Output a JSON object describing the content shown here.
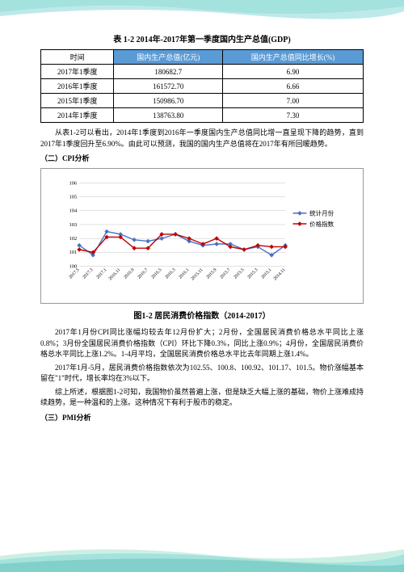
{
  "table_title": "表 1-2 2014年-2017年第一季度国内生产总值(GDP)",
  "table": {
    "headers": [
      "时间",
      "国内生产总值(亿元)",
      "国内生产总值同比增长(%)"
    ],
    "header_bg": "#5b9bd5",
    "header_fg": "#ffffff",
    "rows": [
      [
        "2017年1季度",
        "180682.7",
        "6.90"
      ],
      [
        "2016年1季度",
        "161572.70",
        "6.66"
      ],
      [
        "2015年1季度",
        "150986.70",
        "7.00"
      ],
      [
        "2014年1季度",
        "138763.80",
        "7.30"
      ]
    ]
  },
  "para1": "从表1-2可以看出，2014年1季度到2016年一季度国内生产总值同比增一直呈现下降的趋势，直到2017年1季度回升至6.90%。由此可以预测，我国的国内生产总值将在2017年有所回暖趋势。",
  "section2": "（二）CPI分析",
  "chart": {
    "type": "line",
    "x_labels": [
      "2017.5",
      "2017.3",
      "2017.1",
      "2016.11",
      "2016.9",
      "2016.7",
      "2016.5",
      "2016.3",
      "2016.1",
      "2015.11",
      "2015.9",
      "2015.7",
      "2015.5",
      "2015.3",
      "2015.1",
      "2014.11"
    ],
    "ylim": [
      100,
      106
    ],
    "ytick_step": 1,
    "yticks": [
      100,
      101,
      102,
      103,
      104,
      105,
      106
    ],
    "series": [
      {
        "name": "统计月份",
        "color": "#4472c4",
        "values": [
          101.5,
          100.8,
          102.5,
          102.3,
          101.9,
          101.8,
          102.0,
          102.3,
          101.8,
          101.5,
          101.6,
          101.6,
          101.2,
          101.4,
          100.8,
          101.5
        ]
      },
      {
        "name": "价格指数",
        "color": "#c00000",
        "values": [
          101.2,
          101.0,
          102.1,
          102.1,
          101.3,
          101.3,
          102.3,
          102.3,
          102.0,
          101.6,
          102.0,
          101.4,
          101.2,
          101.5,
          101.4,
          101.4
        ]
      }
    ],
    "background": "#ffffff",
    "grid_color": "#bfbfbf",
    "label_fontsize": 7,
    "line_width": 1.5,
    "marker": "diamond",
    "marker_size": 3
  },
  "chart_caption": "图1-2 居民消费价格指数（2014-2017）",
  "para2": "2017年1月份CPI同比涨幅均较去年12月份扩大；2月份，全国居民消费价格总水平同比上涨0.8%；3月份全国居民消费价格指数（CPI）环比下降0.3%，同比上涨0.9%；4月份，全国居民消费价格总水平同比上涨1.2%。1-4月平均，全国居民消费价格总水平比去年同期上涨1.4%。",
  "para3": "2017年1月-5月，居民消费价格指数依次为102.55、100.8、100.92、101.17、101.5。物价涨幅基本留在\"1\"时代，增长率均在3%以下。",
  "para4": "综上所述，根据图1-2可知，我国物价虽然普遍上涨，但是缺乏大幅上涨的基础，物价上涨难成持续趋势，是一种温和的上涨。这种情况下有利于股市的稳定。",
  "section3": "（三）PMI分析",
  "wave_colors": {
    "c1": "#7dd3d8",
    "c2": "#a8e6cf",
    "c3": "#4db6ac"
  }
}
